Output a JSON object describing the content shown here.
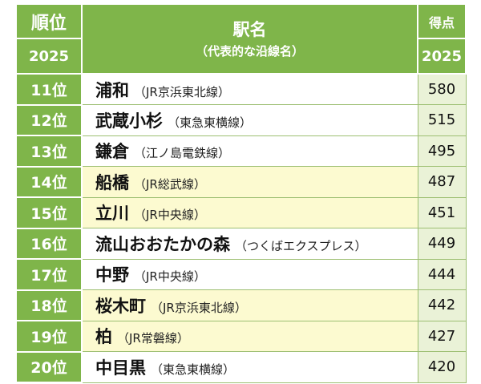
{
  "header": {
    "rank_label": "順位",
    "rank_year": "2025",
    "name_label": "駅名",
    "name_sub": "（代表的な沿線名）",
    "score_label": "得点",
    "score_year": "2025"
  },
  "rows": [
    {
      "rank": "11位",
      "station": "浦和",
      "line": "（JR京浜東北線）",
      "score": "580",
      "highlight": false
    },
    {
      "rank": "12位",
      "station": "武蔵小杉",
      "line": "（東急東横線）",
      "score": "515",
      "highlight": false
    },
    {
      "rank": "13位",
      "station": "鎌倉",
      "line": "（江ノ島電鉄線）",
      "score": "495",
      "highlight": false
    },
    {
      "rank": "14位",
      "station": "船橋",
      "line": "（JR総武線）",
      "score": "487",
      "highlight": true
    },
    {
      "rank": "15位",
      "station": "立川",
      "line": "（JR中央線）",
      "score": "451",
      "highlight": true
    },
    {
      "rank": "16位",
      "station": "流山おおたかの森",
      "line": "（つくばエクスプレス）",
      "score": "449",
      "highlight": false
    },
    {
      "rank": "17位",
      "station": "中野",
      "line": "（JR中央線）",
      "score": "444",
      "highlight": false
    },
    {
      "rank": "18位",
      "station": "桜木町",
      "line": "（JR京浜東北線）",
      "score": "442",
      "highlight": true
    },
    {
      "rank": "19位",
      "station": "柏",
      "line": "（JR常磐線）",
      "score": "427",
      "highlight": true
    },
    {
      "rank": "20位",
      "station": "中目黒",
      "line": "（東急東横線）",
      "score": "420",
      "highlight": false
    }
  ]
}
